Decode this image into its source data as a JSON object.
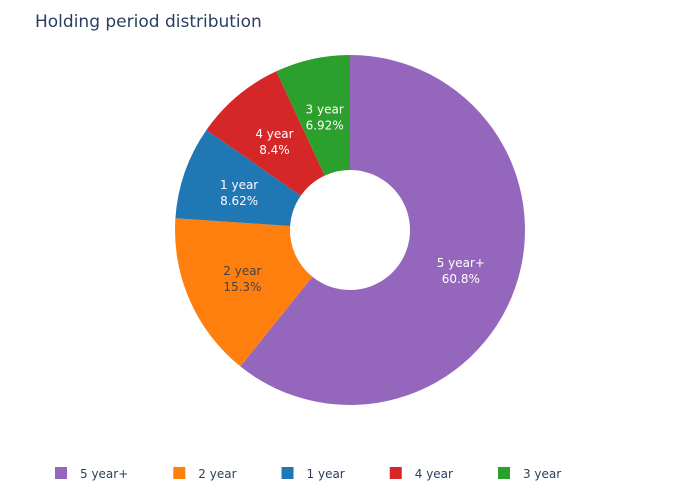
{
  "chart_data": {
    "type": "pie",
    "hole": true,
    "title": "Holding period distribution",
    "legend_position": "bottom",
    "slices": [
      {
        "label": "5 year+",
        "value": 60.8,
        "text": "60.8%",
        "color": "#9467bd"
      },
      {
        "label": "2 year",
        "value": 15.3,
        "text": "15.3%",
        "color": "#ff7f0e"
      },
      {
        "label": "1 year",
        "value": 8.62,
        "text": "8.62%",
        "color": "#1f77b4"
      },
      {
        "label": "4 year",
        "value": 8.4,
        "text": "8.4%",
        "color": "#d62728"
      },
      {
        "label": "3 year",
        "value": 6.92,
        "text": "6.92%",
        "color": "#2ca02c"
      }
    ]
  }
}
